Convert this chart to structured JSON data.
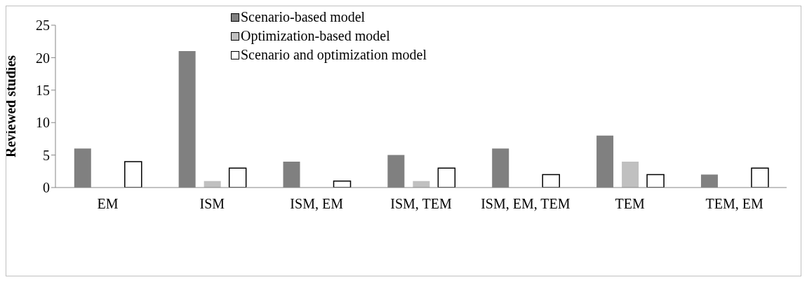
{
  "chart_data": {
    "type": "bar",
    "ylabel": "Reviewed studies",
    "categories": [
      "EM",
      "ISM",
      "ISM, EM",
      "ISM, TEM",
      "ISM, EM, TEM",
      "TEM",
      "TEM, EM"
    ],
    "series": [
      {
        "name": "Scenario-based model",
        "color": "#808080",
        "values": [
          6,
          21,
          4,
          5,
          6,
          8,
          2
        ]
      },
      {
        "name": "Optimization-based model",
        "color": "#c0c0c0",
        "values": [
          0,
          1,
          0,
          1,
          0,
          4,
          0
        ]
      },
      {
        "name": "Scenario and optimization model",
        "color": "#ffffff",
        "values": [
          4,
          3,
          1,
          3,
          2,
          2,
          3
        ]
      }
    ],
    "ylim": [
      0,
      25
    ],
    "yticks": [
      0,
      5,
      10,
      15,
      20,
      25
    ],
    "grid": false,
    "legend": "top"
  }
}
